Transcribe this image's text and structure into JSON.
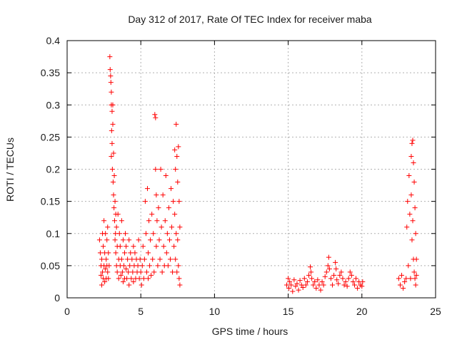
{
  "chart_data": {
    "type": "scatter",
    "title": "Day 312 of 2017, Rate Of TEC Index for receiver maba",
    "xlabel": "GPS time / hours",
    "ylabel": "ROTI / TECUs",
    "xlim": [
      0,
      25
    ],
    "ylim": [
      0,
      0.4
    ],
    "xticks": [
      "0",
      "5",
      "10",
      "15",
      "20",
      "25"
    ],
    "yticks": [
      "0",
      "0.05",
      "0.1",
      "0.15",
      "0.2",
      "0.25",
      "0.3",
      "0.35",
      "0.4"
    ],
    "grid": true,
    "marker": "plus",
    "color": "#ff0000",
    "series": [
      {
        "points": [
          [
            2.2,
            0.09
          ],
          [
            2.25,
            0.07
          ],
          [
            2.3,
            0.05
          ],
          [
            2.3,
            0.035
          ],
          [
            2.35,
            0.02
          ],
          [
            2.35,
            0.06
          ],
          [
            2.4,
            0.1
          ],
          [
            2.4,
            0.04
          ],
          [
            2.45,
            0.08
          ],
          [
            2.45,
            0.03
          ],
          [
            2.5,
            0.05
          ],
          [
            2.5,
            0.12
          ],
          [
            2.55,
            0.07
          ],
          [
            2.55,
            0.025
          ],
          [
            2.6,
            0.1
          ],
          [
            2.6,
            0.045
          ],
          [
            2.65,
            0.06
          ],
          [
            2.65,
            0.03
          ],
          [
            2.7,
            0.09
          ],
          [
            2.7,
            0.05
          ],
          [
            2.75,
            0.04
          ],
          [
            2.75,
            0.11
          ],
          [
            2.8,
            0.03
          ],
          [
            2.8,
            0.07
          ],
          [
            2.85,
            0.05
          ],
          [
            2.9,
            0.375
          ],
          [
            2.92,
            0.355
          ],
          [
            2.95,
            0.345
          ],
          [
            2.97,
            0.335
          ],
          [
            3.0,
            0.32
          ],
          [
            3.0,
            0.3
          ],
          [
            3.0,
            0.22
          ],
          [
            3.02,
            0.26
          ],
          [
            3.05,
            0.29
          ],
          [
            3.05,
            0.24
          ],
          [
            3.07,
            0.2
          ],
          [
            3.1,
            0.3
          ],
          [
            3.1,
            0.27
          ],
          [
            3.12,
            0.18
          ],
          [
            3.15,
            0.225
          ],
          [
            3.15,
            0.16
          ],
          [
            3.18,
            0.14
          ],
          [
            3.2,
            0.19
          ],
          [
            3.22,
            0.12
          ],
          [
            3.25,
            0.15
          ],
          [
            3.25,
            0.09
          ],
          [
            3.28,
            0.1
          ],
          [
            3.3,
            0.13
          ],
          [
            3.3,
            0.07
          ],
          [
            3.35,
            0.11
          ],
          [
            3.35,
            0.05
          ],
          [
            3.4,
            0.08
          ],
          [
            3.4,
            0.04
          ],
          [
            3.45,
            0.13
          ],
          [
            3.5,
            0.06
          ],
          [
            3.5,
            0.03
          ],
          [
            3.55,
            0.1
          ],
          [
            3.6,
            0.05
          ],
          [
            3.6,
            0.08
          ],
          [
            3.65,
            0.035
          ],
          [
            3.7,
            0.12
          ],
          [
            3.7,
            0.06
          ],
          [
            3.75,
            0.04
          ],
          [
            3.8,
            0.09
          ],
          [
            3.8,
            0.025
          ],
          [
            3.85,
            0.05
          ],
          [
            3.9,
            0.07
          ],
          [
            3.9,
            0.03
          ],
          [
            3.95,
            0.1
          ],
          [
            4.0,
            0.045
          ],
          [
            4.0,
            0.08
          ],
          [
            4.05,
            0.03
          ],
          [
            4.1,
            0.06
          ],
          [
            4.15,
            0.04
          ],
          [
            4.2,
            0.09
          ],
          [
            4.2,
            0.02
          ],
          [
            4.25,
            0.05
          ],
          [
            4.3,
            0.07
          ],
          [
            4.35,
            0.03
          ],
          [
            4.4,
            0.06
          ],
          [
            4.45,
            0.04
          ],
          [
            4.5,
            0.08
          ],
          [
            4.5,
            0.025
          ],
          [
            4.55,
            0.05
          ],
          [
            4.6,
            0.07
          ],
          [
            4.65,
            0.03
          ],
          [
            4.7,
            0.06
          ],
          [
            4.75,
            0.04
          ],
          [
            4.8,
            0.05
          ],
          [
            4.85,
            0.09
          ],
          [
            4.9,
            0.03
          ],
          [
            4.95,
            0.06
          ],
          [
            5.0,
            0.04
          ],
          [
            5.05,
            0.02
          ],
          [
            5.1,
            0.05
          ],
          [
            5.15,
            0.08
          ],
          [
            5.2,
            0.03
          ],
          [
            5.25,
            0.06
          ],
          [
            5.3,
            0.15
          ],
          [
            5.35,
            0.1
          ],
          [
            5.4,
            0.04
          ],
          [
            5.45,
            0.17
          ],
          [
            5.5,
            0.07
          ],
          [
            5.5,
            0.03
          ],
          [
            5.55,
            0.12
          ],
          [
            5.6,
            0.05
          ],
          [
            5.65,
            0.09
          ],
          [
            5.7,
            0.035
          ],
          [
            5.75,
            0.13
          ],
          [
            5.8,
            0.06
          ],
          [
            5.85,
            0.1
          ],
          [
            5.9,
            0.04
          ],
          [
            5.95,
            0.285
          ],
          [
            6.0,
            0.28
          ],
          [
            6.0,
            0.2
          ],
          [
            6.05,
            0.16
          ],
          [
            6.05,
            0.08
          ],
          [
            6.1,
            0.12
          ],
          [
            6.15,
            0.05
          ],
          [
            6.2,
            0.14
          ],
          [
            6.25,
            0.09
          ],
          [
            6.3,
            0.06
          ],
          [
            6.35,
            0.2
          ],
          [
            6.4,
            0.11
          ],
          [
            6.45,
            0.04
          ],
          [
            6.5,
            0.16
          ],
          [
            6.55,
            0.08
          ],
          [
            6.6,
            0.05
          ],
          [
            6.65,
            0.12
          ],
          [
            6.7,
            0.19
          ],
          [
            6.75,
            0.07
          ],
          [
            6.8,
            0.1
          ],
          [
            6.85,
            0.05
          ],
          [
            6.9,
            0.14
          ],
          [
            6.95,
            0.09
          ],
          [
            7.0,
            0.06
          ],
          [
            7.05,
            0.17
          ],
          [
            7.1,
            0.11
          ],
          [
            7.15,
            0.04
          ],
          [
            7.2,
            0.15
          ],
          [
            7.25,
            0.08
          ],
          [
            7.3,
            0.23
          ],
          [
            7.3,
            0.13
          ],
          [
            7.35,
            0.2
          ],
          [
            7.35,
            0.06
          ],
          [
            7.4,
            0.27
          ],
          [
            7.4,
            0.1
          ],
          [
            7.45,
            0.22
          ],
          [
            7.45,
            0.04
          ],
          [
            7.5,
            0.18
          ],
          [
            7.5,
            0.09
          ],
          [
            7.55,
            0.235
          ],
          [
            7.55,
            0.05
          ],
          [
            7.6,
            0.15
          ],
          [
            7.6,
            0.03
          ],
          [
            7.65,
            0.11
          ],
          [
            7.65,
            0.02
          ],
          [
            14.9,
            0.02
          ],
          [
            15.0,
            0.03
          ],
          [
            15.05,
            0.015
          ],
          [
            15.1,
            0.025
          ],
          [
            15.2,
            0.02
          ],
          [
            15.3,
            0.01
          ],
          [
            15.4,
            0.028
          ],
          [
            15.5,
            0.018
          ],
          [
            15.6,
            0.022
          ],
          [
            15.7,
            0.012
          ],
          [
            15.8,
            0.027
          ],
          [
            15.9,
            0.02
          ],
          [
            16.0,
            0.016
          ],
          [
            16.1,
            0.03
          ],
          [
            16.2,
            0.02
          ],
          [
            16.3,
            0.025
          ],
          [
            16.4,
            0.035
          ],
          [
            16.5,
            0.048
          ],
          [
            16.55,
            0.04
          ],
          [
            16.6,
            0.03
          ],
          [
            16.7,
            0.02
          ],
          [
            16.8,
            0.025
          ],
          [
            16.9,
            0.015
          ],
          [
            17.0,
            0.028
          ],
          [
            17.1,
            0.02
          ],
          [
            17.2,
            0.012
          ],
          [
            17.3,
            0.025
          ],
          [
            17.4,
            0.02
          ],
          [
            17.5,
            0.033
          ],
          [
            17.6,
            0.04
          ],
          [
            17.7,
            0.05
          ],
          [
            17.75,
            0.063
          ],
          [
            17.8,
            0.045
          ],
          [
            17.9,
            0.03
          ],
          [
            18.0,
            0.02
          ],
          [
            18.1,
            0.035
          ],
          [
            18.2,
            0.055
          ],
          [
            18.25,
            0.045
          ],
          [
            18.3,
            0.028
          ],
          [
            18.4,
            0.022
          ],
          [
            18.5,
            0.035
          ],
          [
            18.6,
            0.04
          ],
          [
            18.7,
            0.03
          ],
          [
            18.8,
            0.02
          ],
          [
            18.9,
            0.025
          ],
          [
            19.0,
            0.018
          ],
          [
            19.1,
            0.03
          ],
          [
            19.2,
            0.04
          ],
          [
            19.3,
            0.035
          ],
          [
            19.4,
            0.025
          ],
          [
            19.5,
            0.02
          ],
          [
            19.6,
            0.03
          ],
          [
            19.7,
            0.015
          ],
          [
            19.8,
            0.025
          ],
          [
            19.9,
            0.02
          ],
          [
            20.0,
            0.018
          ],
          [
            20.05,
            0.025
          ],
          [
            22.5,
            0.03
          ],
          [
            22.6,
            0.02
          ],
          [
            22.7,
            0.035
          ],
          [
            22.8,
            0.015
          ],
          [
            22.9,
            0.025
          ],
          [
            23.0,
            0.03
          ],
          [
            23.05,
            0.11
          ],
          [
            23.1,
            0.15
          ],
          [
            23.15,
            0.05
          ],
          [
            23.2,
            0.19
          ],
          [
            23.25,
            0.13
          ],
          [
            23.3,
            0.03
          ],
          [
            23.35,
            0.22
          ],
          [
            23.35,
            0.16
          ],
          [
            23.4,
            0.24
          ],
          [
            23.4,
            0.09
          ],
          [
            23.45,
            0.245
          ],
          [
            23.45,
            0.12
          ],
          [
            23.5,
            0.21
          ],
          [
            23.5,
            0.06
          ],
          [
            23.55,
            0.18
          ],
          [
            23.55,
            0.04
          ],
          [
            23.6,
            0.14
          ],
          [
            23.6,
            0.03
          ],
          [
            23.65,
            0.1
          ],
          [
            23.65,
            0.02
          ],
          [
            23.7,
            0.06
          ],
          [
            23.7,
            0.035
          ]
        ]
      }
    ]
  }
}
